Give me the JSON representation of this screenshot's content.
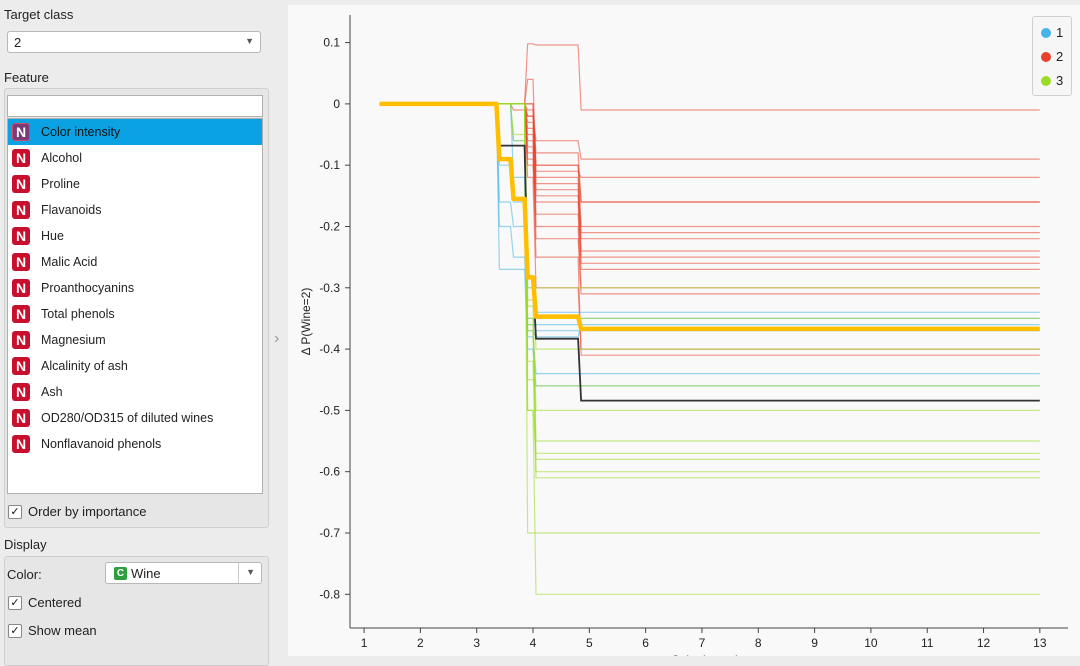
{
  "left_panel": {
    "target_class_label": "Target class",
    "target_class_value": "2",
    "feature_label": "Feature",
    "filter_value": "",
    "features": [
      {
        "badge": "N",
        "label": "Color intensity",
        "selected": true
      },
      {
        "badge": "N",
        "label": "Alcohol"
      },
      {
        "badge": "N",
        "label": "Proline"
      },
      {
        "badge": "N",
        "label": "Flavanoids"
      },
      {
        "badge": "N",
        "label": "Hue"
      },
      {
        "badge": "N",
        "label": "Malic Acid"
      },
      {
        "badge": "N",
        "label": "Proanthocyanins"
      },
      {
        "badge": "N",
        "label": "Total phenols"
      },
      {
        "badge": "N",
        "label": "Magnesium"
      },
      {
        "badge": "N",
        "label": "Alcalinity of ash"
      },
      {
        "badge": "N",
        "label": "Ash"
      },
      {
        "badge": "N",
        "label": "OD280/OD315 of diluted wines"
      },
      {
        "badge": "N",
        "label": "Nonflavanoid phenols"
      }
    ],
    "order_by_importance": {
      "label": "Order by importance",
      "checked": true,
      "mark": "✓"
    },
    "display_label": "Display",
    "color_label": "Color:",
    "color_badge": "C",
    "color_value": "Wine",
    "centered": {
      "label": "Centered",
      "checked": true,
      "mark": "✓"
    },
    "show_mean": {
      "label": "Show mean",
      "checked": true,
      "mark": "✓"
    }
  },
  "legend": [
    {
      "name": "1",
      "color": "#46b4e6"
    },
    {
      "name": "2",
      "color": "#e8412c"
    },
    {
      "name": "3",
      "color": "#9bdb24"
    }
  ],
  "chart_data": {
    "type": "line",
    "ylabel": "Δ P(Wine=2)",
    "xlabel": "Color intensity",
    "xlim": [
      0.75,
      13.5
    ],
    "ylim": [
      -0.855,
      0.145
    ],
    "xticks": [
      1,
      2,
      3,
      4,
      5,
      6,
      7,
      8,
      9,
      10,
      11,
      12,
      13
    ],
    "yticks": [
      0.1,
      0,
      -0.1,
      -0.2,
      -0.3,
      -0.4,
      -0.5,
      -0.6,
      -0.7,
      -0.8
    ],
    "ytick_labels": [
      "0.1",
      "0",
      "-0.1",
      "-0.2",
      "-0.3",
      "-0.4",
      "-0.5",
      "-0.6",
      "-0.7",
      "-0.8"
    ],
    "breakpoints": [
      3.35,
      3.6,
      3.85,
      4.0,
      4.8,
      7.6
    ],
    "x_start": 1.28,
    "x_end": 13.0,
    "mean_line": {
      "color": "#ffbe00",
      "values": [
        0,
        -0.09,
        -0.155,
        -0.283,
        -0.347,
        -0.367
      ]
    },
    "highlight_line": {
      "color": "#333333",
      "values": [
        0,
        -0.068,
        -0.068,
        -0.285,
        -0.383,
        -0.484
      ]
    },
    "series": [
      {
        "class": "2",
        "values": [
          0,
          0,
          0,
          0.098,
          0.096,
          -0.01
        ]
      },
      {
        "class": "2",
        "values": [
          0,
          0,
          0,
          0.0,
          -0.1,
          -0.16
        ]
      },
      {
        "class": "2",
        "values": [
          0,
          0,
          0,
          -0.02,
          -0.06,
          -0.09
        ]
      },
      {
        "class": "2",
        "values": [
          0,
          0,
          0,
          -0.04,
          -0.1,
          -0.2
        ]
      },
      {
        "class": "2",
        "values": [
          0,
          0,
          0,
          -0.06,
          -0.12,
          -0.21
        ]
      },
      {
        "class": "2",
        "values": [
          0,
          0,
          0,
          -0.08,
          -0.14,
          -0.24
        ]
      },
      {
        "class": "2",
        "values": [
          0,
          0,
          -0.01,
          -0.1,
          -0.16,
          -0.26
        ]
      },
      {
        "class": "2",
        "values": [
          0,
          0,
          0,
          -0.03,
          -0.2,
          -0.3
        ]
      },
      {
        "class": "2",
        "values": [
          0,
          0,
          0,
          -0.05,
          -0.22,
          -0.31
        ]
      },
      {
        "class": "2",
        "values": [
          0,
          0,
          0,
          -0.07,
          -0.18,
          -0.27
        ]
      },
      {
        "class": "2",
        "values": [
          0,
          0,
          0,
          0.04,
          -0.11,
          -0.12
        ]
      },
      {
        "class": "2",
        "values": [
          0,
          0,
          0,
          -0.02,
          -0.08,
          -0.16
        ]
      },
      {
        "class": "2",
        "values": [
          0,
          0,
          0,
          -0.01,
          -0.13,
          -0.22
        ]
      },
      {
        "class": "2",
        "values": [
          0,
          0,
          0,
          0.0,
          -0.15,
          -0.25
        ]
      },
      {
        "class": "2",
        "values": [
          0,
          0,
          0,
          -0.09,
          -0.25,
          -0.41
        ]
      },
      {
        "class": "2",
        "values": [
          0,
          0,
          0,
          -0.12,
          -0.3,
          -0.4
        ]
      },
      {
        "class": "1",
        "values": [
          0,
          -0.1,
          -0.16,
          -0.37,
          -0.38,
          -0.36
        ]
      },
      {
        "class": "1",
        "values": [
          0,
          -0.16,
          -0.2,
          -0.36,
          -0.36,
          -0.35
        ]
      },
      {
        "class": "1",
        "values": [
          0,
          -0.27,
          -0.27,
          -0.4,
          -0.46,
          -0.46
        ]
      },
      {
        "class": "1",
        "values": [
          0,
          -0.2,
          -0.25,
          -0.35,
          -0.37,
          -0.37
        ]
      },
      {
        "class": "1",
        "values": [
          0,
          0,
          -0.12,
          -0.38,
          -0.44,
          -0.44
        ]
      },
      {
        "class": "1",
        "values": [
          0,
          0,
          -0.06,
          -0.3,
          -0.34,
          -0.34
        ]
      },
      {
        "class": "3",
        "values": [
          0,
          0,
          0,
          -0.3,
          -0.3,
          -0.3
        ]
      },
      {
        "class": "3",
        "values": [
          0,
          0,
          -0.05,
          -0.35,
          -0.5,
          -0.5
        ]
      },
      {
        "class": "3",
        "values": [
          0,
          0,
          0,
          -0.37,
          -0.6,
          -0.6
        ]
      },
      {
        "class": "3",
        "values": [
          0,
          0,
          0,
          -0.5,
          -0.57,
          -0.57
        ]
      },
      {
        "class": "3",
        "values": [
          0,
          0,
          0,
          -0.7,
          -0.7,
          -0.7
        ]
      },
      {
        "class": "3",
        "values": [
          0,
          0,
          0,
          -0.5,
          -0.8,
          -0.8
        ]
      },
      {
        "class": "3",
        "values": [
          0,
          0,
          0,
          -0.28,
          -0.4,
          -0.4
        ]
      },
      {
        "class": "3",
        "values": [
          0,
          0,
          -0.06,
          -0.36,
          -0.55,
          -0.55
        ]
      },
      {
        "class": "3",
        "values": [
          0,
          0,
          0,
          -0.42,
          -0.61,
          -0.61
        ]
      },
      {
        "class": "3",
        "values": [
          0,
          0,
          0,
          -0.45,
          -0.46,
          -0.46
        ]
      },
      {
        "class": "3",
        "values": [
          0,
          0,
          0,
          -0.33,
          -0.35,
          -0.35
        ]
      },
      {
        "class": "3",
        "values": [
          0,
          0,
          0,
          -0.32,
          -0.58,
          -0.58
        ]
      }
    ]
  }
}
